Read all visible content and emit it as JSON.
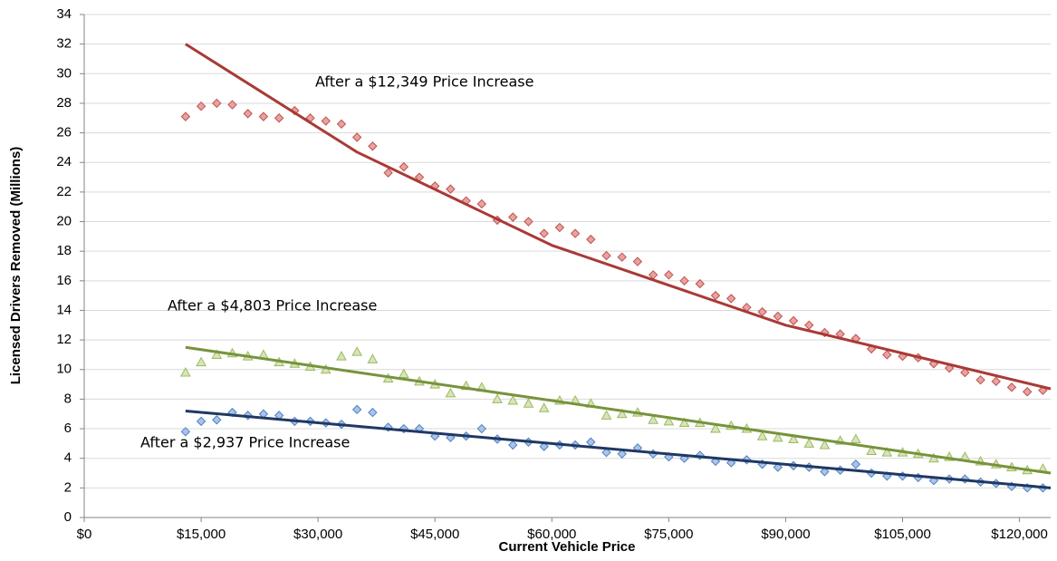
{
  "chart_data": {
    "type": "scatter",
    "x_label": "Current Vehicle Price",
    "y_label": "Licensed Drivers Removed (Millions)",
    "xlim": [
      0,
      124000
    ],
    "xticks": [
      {
        "value": 0,
        "label": "$0"
      },
      {
        "value": 15000,
        "label": "$15,000"
      },
      {
        "value": 30000,
        "label": "$30,000"
      },
      {
        "value": 45000,
        "label": "$45,000"
      },
      {
        "value": 60000,
        "label": "$60,000"
      },
      {
        "value": 75000,
        "label": "$75,000"
      },
      {
        "value": 90000,
        "label": "$90,000"
      },
      {
        "value": 105000,
        "label": "$105,000"
      },
      {
        "value": 120000,
        "label": "$120,000"
      }
    ],
    "ylim": [
      0,
      34
    ],
    "yticks": [
      0,
      2,
      4,
      6,
      8,
      10,
      12,
      14,
      16,
      18,
      20,
      22,
      24,
      26,
      28,
      30,
      32,
      34
    ],
    "grid": true,
    "x": [
      13000,
      15000,
      17000,
      19000,
      21000,
      23000,
      25000,
      27000,
      29000,
      31000,
      33000,
      35000,
      37000,
      39000,
      41000,
      43000,
      45000,
      47000,
      49000,
      51000,
      53000,
      55000,
      57000,
      59000,
      61000,
      63000,
      65000,
      67000,
      69000,
      71000,
      73000,
      75000,
      77000,
      79000,
      81000,
      83000,
      85000,
      87000,
      89000,
      91000,
      93000,
      95000,
      97000,
      99000,
      101000,
      103000,
      105000,
      107000,
      109000,
      111000,
      113000,
      115000,
      117000,
      119000,
      121000,
      123000
    ],
    "series": [
      {
        "name": "After a $12,349 Price Increase",
        "marker": "diamond",
        "color": "#c0504d",
        "fill": "#e6a3a1",
        "trend_color": "#a93a36",
        "values": [
          27.1,
          27.8,
          28.0,
          27.9,
          27.3,
          27.1,
          27.0,
          27.5,
          27.0,
          26.8,
          26.6,
          25.7,
          25.1,
          23.3,
          23.7,
          23.0,
          22.4,
          22.2,
          21.4,
          21.2,
          20.1,
          20.3,
          20.0,
          19.2,
          19.6,
          19.2,
          18.8,
          17.7,
          17.6,
          17.3,
          16.4,
          16.4,
          16.0,
          15.8,
          15.0,
          14.8,
          14.2,
          13.9,
          13.6,
          13.3,
          13.0,
          12.5,
          12.4,
          12.1,
          11.4,
          11.0,
          10.9,
          10.8,
          10.4,
          10.1,
          9.8,
          9.3,
          9.2,
          8.8,
          8.5,
          8.6
        ],
        "trend": {
          "x": [
            13000,
            35000,
            60000,
            90000,
            124000
          ],
          "values": [
            32.0,
            24.7,
            18.4,
            13.0,
            8.7
          ]
        }
      },
      {
        "name": "After a $4,803 Price Increase",
        "marker": "triangle",
        "color": "#9bbb59",
        "fill": "#d7e4bd",
        "trend_color": "#77933c",
        "values": [
          9.8,
          10.5,
          11.0,
          11.1,
          10.9,
          11.0,
          10.5,
          10.4,
          10.2,
          10.0,
          10.9,
          11.2,
          10.7,
          9.4,
          9.7,
          9.2,
          9.0,
          8.4,
          8.9,
          8.8,
          8.0,
          7.9,
          7.7,
          7.4,
          7.9,
          7.9,
          7.7,
          6.9,
          7.0,
          7.1,
          6.6,
          6.5,
          6.4,
          6.4,
          6.0,
          6.2,
          6.0,
          5.5,
          5.4,
          5.3,
          5.0,
          4.9,
          5.2,
          5.3,
          4.5,
          4.4,
          4.4,
          4.3,
          4.0,
          4.1,
          4.1,
          3.8,
          3.6,
          3.4,
          3.2,
          3.3
        ],
        "trend": {
          "x": [
            13000,
            124000
          ],
          "values": [
            11.5,
            3.0
          ]
        }
      },
      {
        "name": "After a $2,937 Price Increase",
        "marker": "diamond",
        "color": "#4f81bd",
        "fill": "#a9c4eb",
        "trend_color": "#1f3864",
        "values": [
          5.8,
          6.5,
          6.6,
          7.1,
          6.9,
          7.0,
          6.9,
          6.5,
          6.5,
          6.4,
          6.3,
          7.3,
          7.1,
          6.1,
          6.0,
          6.0,
          5.5,
          5.4,
          5.5,
          6.0,
          5.3,
          4.9,
          5.1,
          4.8,
          4.9,
          4.9,
          5.1,
          4.4,
          4.3,
          4.7,
          4.3,
          4.1,
          4.0,
          4.2,
          3.8,
          3.7,
          3.9,
          3.6,
          3.4,
          3.5,
          3.4,
          3.1,
          3.2,
          3.6,
          3.0,
          2.8,
          2.8,
          2.7,
          2.5,
          2.6,
          2.6,
          2.4,
          2.3,
          2.1,
          2.0,
          2.0
        ],
        "trend": {
          "x": [
            13000,
            124000
          ],
          "values": [
            7.2,
            2.0
          ]
        }
      }
    ]
  }
}
